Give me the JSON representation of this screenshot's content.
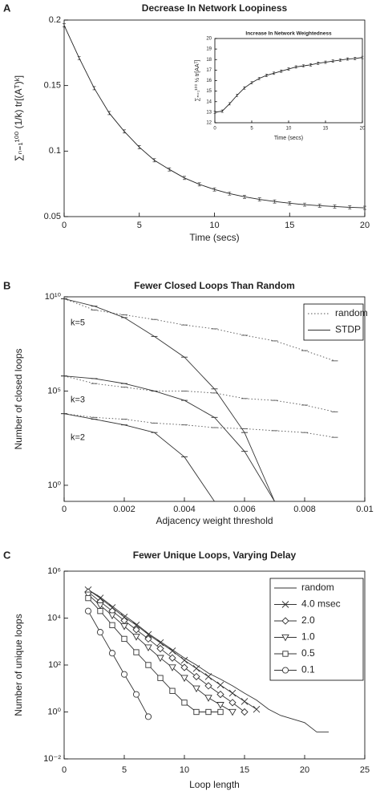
{
  "chart_data": [
    {
      "type": "line",
      "panel_label": "A",
      "title": "Decrease In Network Loopiness",
      "xlabel": "Time (secs)",
      "ylabel": "∑ₙ₌₁¹⁰⁰ (1/k) tr[(Aᵀ)ᵏ]",
      "x": [
        0,
        1,
        2,
        3,
        4,
        5,
        6,
        7,
        8,
        9,
        10,
        11,
        12,
        13,
        14,
        15,
        16,
        17,
        18,
        19,
        20
      ],
      "series": [
        {
          "color": "#222",
          "marker": "plus",
          "values": [
            0.196,
            0.171,
            0.148,
            0.129,
            0.115,
            0.103,
            0.093,
            0.086,
            0.0795,
            0.0746,
            0.0707,
            0.0676,
            0.0651,
            0.0631,
            0.0615,
            0.0602,
            0.0591,
            0.0583,
            0.0577,
            0.0571,
            0.0567
          ]
        }
      ],
      "xlim": [
        0,
        20
      ],
      "xticks": [
        0,
        5,
        10,
        15,
        20
      ],
      "ylim": [
        0.05,
        0.2
      ],
      "yticks": [
        0.05,
        0.1,
        0.15,
        0.2
      ]
    },
    {
      "type": "line",
      "title": "Increase In Network Weightedness",
      "xlabel": "Time (secs)",
      "ylabel": "∑ₙ₌₁¹⁰⁰ ½ tr[AAᵀ]",
      "x": [
        0,
        1,
        2,
        3,
        4,
        5,
        6,
        7,
        8,
        9,
        10,
        11,
        12,
        13,
        14,
        15,
        16,
        17,
        18,
        19,
        20
      ],
      "series": [
        {
          "color": "#222",
          "marker": "plus",
          "values": [
            13,
            13.1,
            13.8,
            14.6,
            15.3,
            15.8,
            16.2,
            16.5,
            16.7,
            16.9,
            17.1,
            17.3,
            17.4,
            17.5,
            17.65,
            17.75,
            17.85,
            17.95,
            18.05,
            18.1,
            18.2
          ]
        }
      ],
      "xlim": [
        0,
        20
      ],
      "xticks": [
        0,
        5,
        10,
        15,
        20
      ],
      "ylim": [
        12,
        20
      ],
      "yticks": [
        12,
        13,
        14,
        15,
        16,
        17,
        18,
        19,
        20
      ]
    },
    {
      "type": "line",
      "panel_label": "B",
      "title": "Fewer Closed Loops Than Random",
      "xlabel": "Adjacency weight threshold",
      "ylabel": "Number of closed loops",
      "yscale": "log",
      "x": [
        0,
        0.001,
        0.002,
        0.003,
        0.004,
        0.005,
        0.006,
        0.007,
        0.008,
        0.009
      ],
      "series": [
        {
          "name": "random",
          "color": "#555",
          "dash": "dotted",
          "marker": "cap",
          "curves": [
            {
              "label": "k=5",
              "values": [
                7900000000.0,
                2000000000.0,
                1100000000.0,
                630000000.0,
                320000000.0,
                200000000.0,
                91000000.0,
                46000000.0,
                14000000.0,
                4000000.0
              ]
            },
            {
              "label": "k=3",
              "values": [
                630000.0,
                250000.0,
                160000.0,
                100000.0,
                100000.0,
                79000.0,
                40000.0,
                32000.0,
                18000.0,
                7900
              ]
            },
            {
              "label": "k=2",
              "values": [
                6300,
                4000,
                3200,
                2000,
                1600,
                1150,
                1000,
                790,
                630,
                350
              ]
            }
          ]
        },
        {
          "name": "STDP",
          "color": "#333",
          "dash": "solid",
          "marker": "cap",
          "curves": [
            {
              "values": [
                7900000000.0,
                3200000000.0,
                790000000.0,
                79000000.0,
                6300000.0,
                130000.0,
                630,
                0.14,
                null,
                null
              ]
            },
            {
              "values": [
                630000.0,
                460000.0,
                250000.0,
                100000.0,
                32000.0,
                4000,
                63,
                0.14,
                null,
                null
              ]
            },
            {
              "values": [
                6300,
                3200,
                1600,
                630,
                32,
                0.14,
                null,
                null,
                null,
                null
              ]
            }
          ]
        }
      ],
      "legend": "upper right",
      "xlim": [
        0,
        0.01
      ],
      "xticks": [
        0,
        0.002,
        0.004,
        0.006,
        0.008,
        0.01
      ],
      "ylim": [
        0.14,
        10000000000.0
      ],
      "yticks": [
        {
          "value": 1,
          "label": "10⁰"
        },
        {
          "value": 100000.0,
          "label": "10⁵"
        },
        {
          "value": 10000000000.0,
          "label": "10¹⁰"
        }
      ]
    },
    {
      "type": "line",
      "panel_label": "C",
      "title": "Fewer Unique Loops, Varying Delay",
      "xlabel": "Loop length",
      "ylabel": "Number of unique loops",
      "yscale": "log",
      "x": [
        2,
        3,
        4,
        5,
        6,
        7,
        8,
        9,
        10,
        11,
        12,
        13,
        14,
        15,
        16,
        17,
        18,
        19,
        20,
        21,
        22
      ],
      "series": [
        {
          "name": "random",
          "color": "#333",
          "values": [
            160000.0,
            79000.0,
            32000.0,
            13000.0,
            5600,
            2200,
            1000,
            450,
            200,
            100,
            45,
            25,
            13,
            6.3,
            3.2,
            1.3,
            0.71,
            0.5,
            0.35,
            0.14,
            0.14
          ]
        },
        {
          "name": "4.0 msec",
          "color": "#333",
          "marker": "x",
          "values": [
            160000.0,
            71000.0,
            28000.0,
            11000.0,
            5000,
            2000,
            890,
            400,
            160,
            71,
            32,
            14,
            6.3,
            2.8,
            1.3,
            null,
            null,
            null,
            null,
            null,
            null
          ]
        },
        {
          "name": "2.0",
          "color": "#333",
          "marker": "diamond",
          "values": [
            130000.0,
            50000.0,
            20000.0,
            7900,
            3200,
            1300,
            500,
            200,
            79,
            32,
            13,
            5.6,
            2.5,
            1,
            null,
            null,
            null,
            null,
            null,
            null,
            null
          ]
        },
        {
          "name": "1.0",
          "color": "#333",
          "marker": "triangle-down",
          "values": [
            100000.0,
            35000.0,
            13000.0,
            4500,
            1600,
            560,
            200,
            79,
            28,
            10,
            4,
            2,
            1,
            null,
            null,
            null,
            null,
            null,
            null,
            null,
            null
          ]
        },
        {
          "name": "0.5",
          "color": "#333",
          "marker": "square",
          "values": [
            71000.0,
            20000.0,
            5000,
            1300,
            350,
            100,
            28,
            7.9,
            2.5,
            1,
            1,
            1,
            null,
            null,
            null,
            null,
            null,
            null,
            null,
            null,
            null
          ]
        },
        {
          "name": "0.1",
          "color": "#333",
          "marker": "circle",
          "values": [
            20000.0,
            2500,
            320,
            40,
            5.6,
            0.63,
            null,
            null,
            null,
            null,
            null,
            null,
            null,
            null,
            null,
            null,
            null,
            null,
            null,
            null,
            null
          ]
        }
      ],
      "legend": "upper right",
      "xlim": [
        0,
        25
      ],
      "xticks": [
        0,
        5,
        10,
        15,
        20,
        25
      ],
      "ylim": [
        0.01,
        1000000.0
      ],
      "yticks": [
        {
          "value": 0.01,
          "label": "10⁻²"
        },
        {
          "value": 1,
          "label": "10⁰"
        },
        {
          "value": 100,
          "label": "10²"
        },
        {
          "value": 10000.0,
          "label": "10⁴"
        },
        {
          "value": 1000000.0,
          "label": "10⁶"
        }
      ]
    }
  ]
}
